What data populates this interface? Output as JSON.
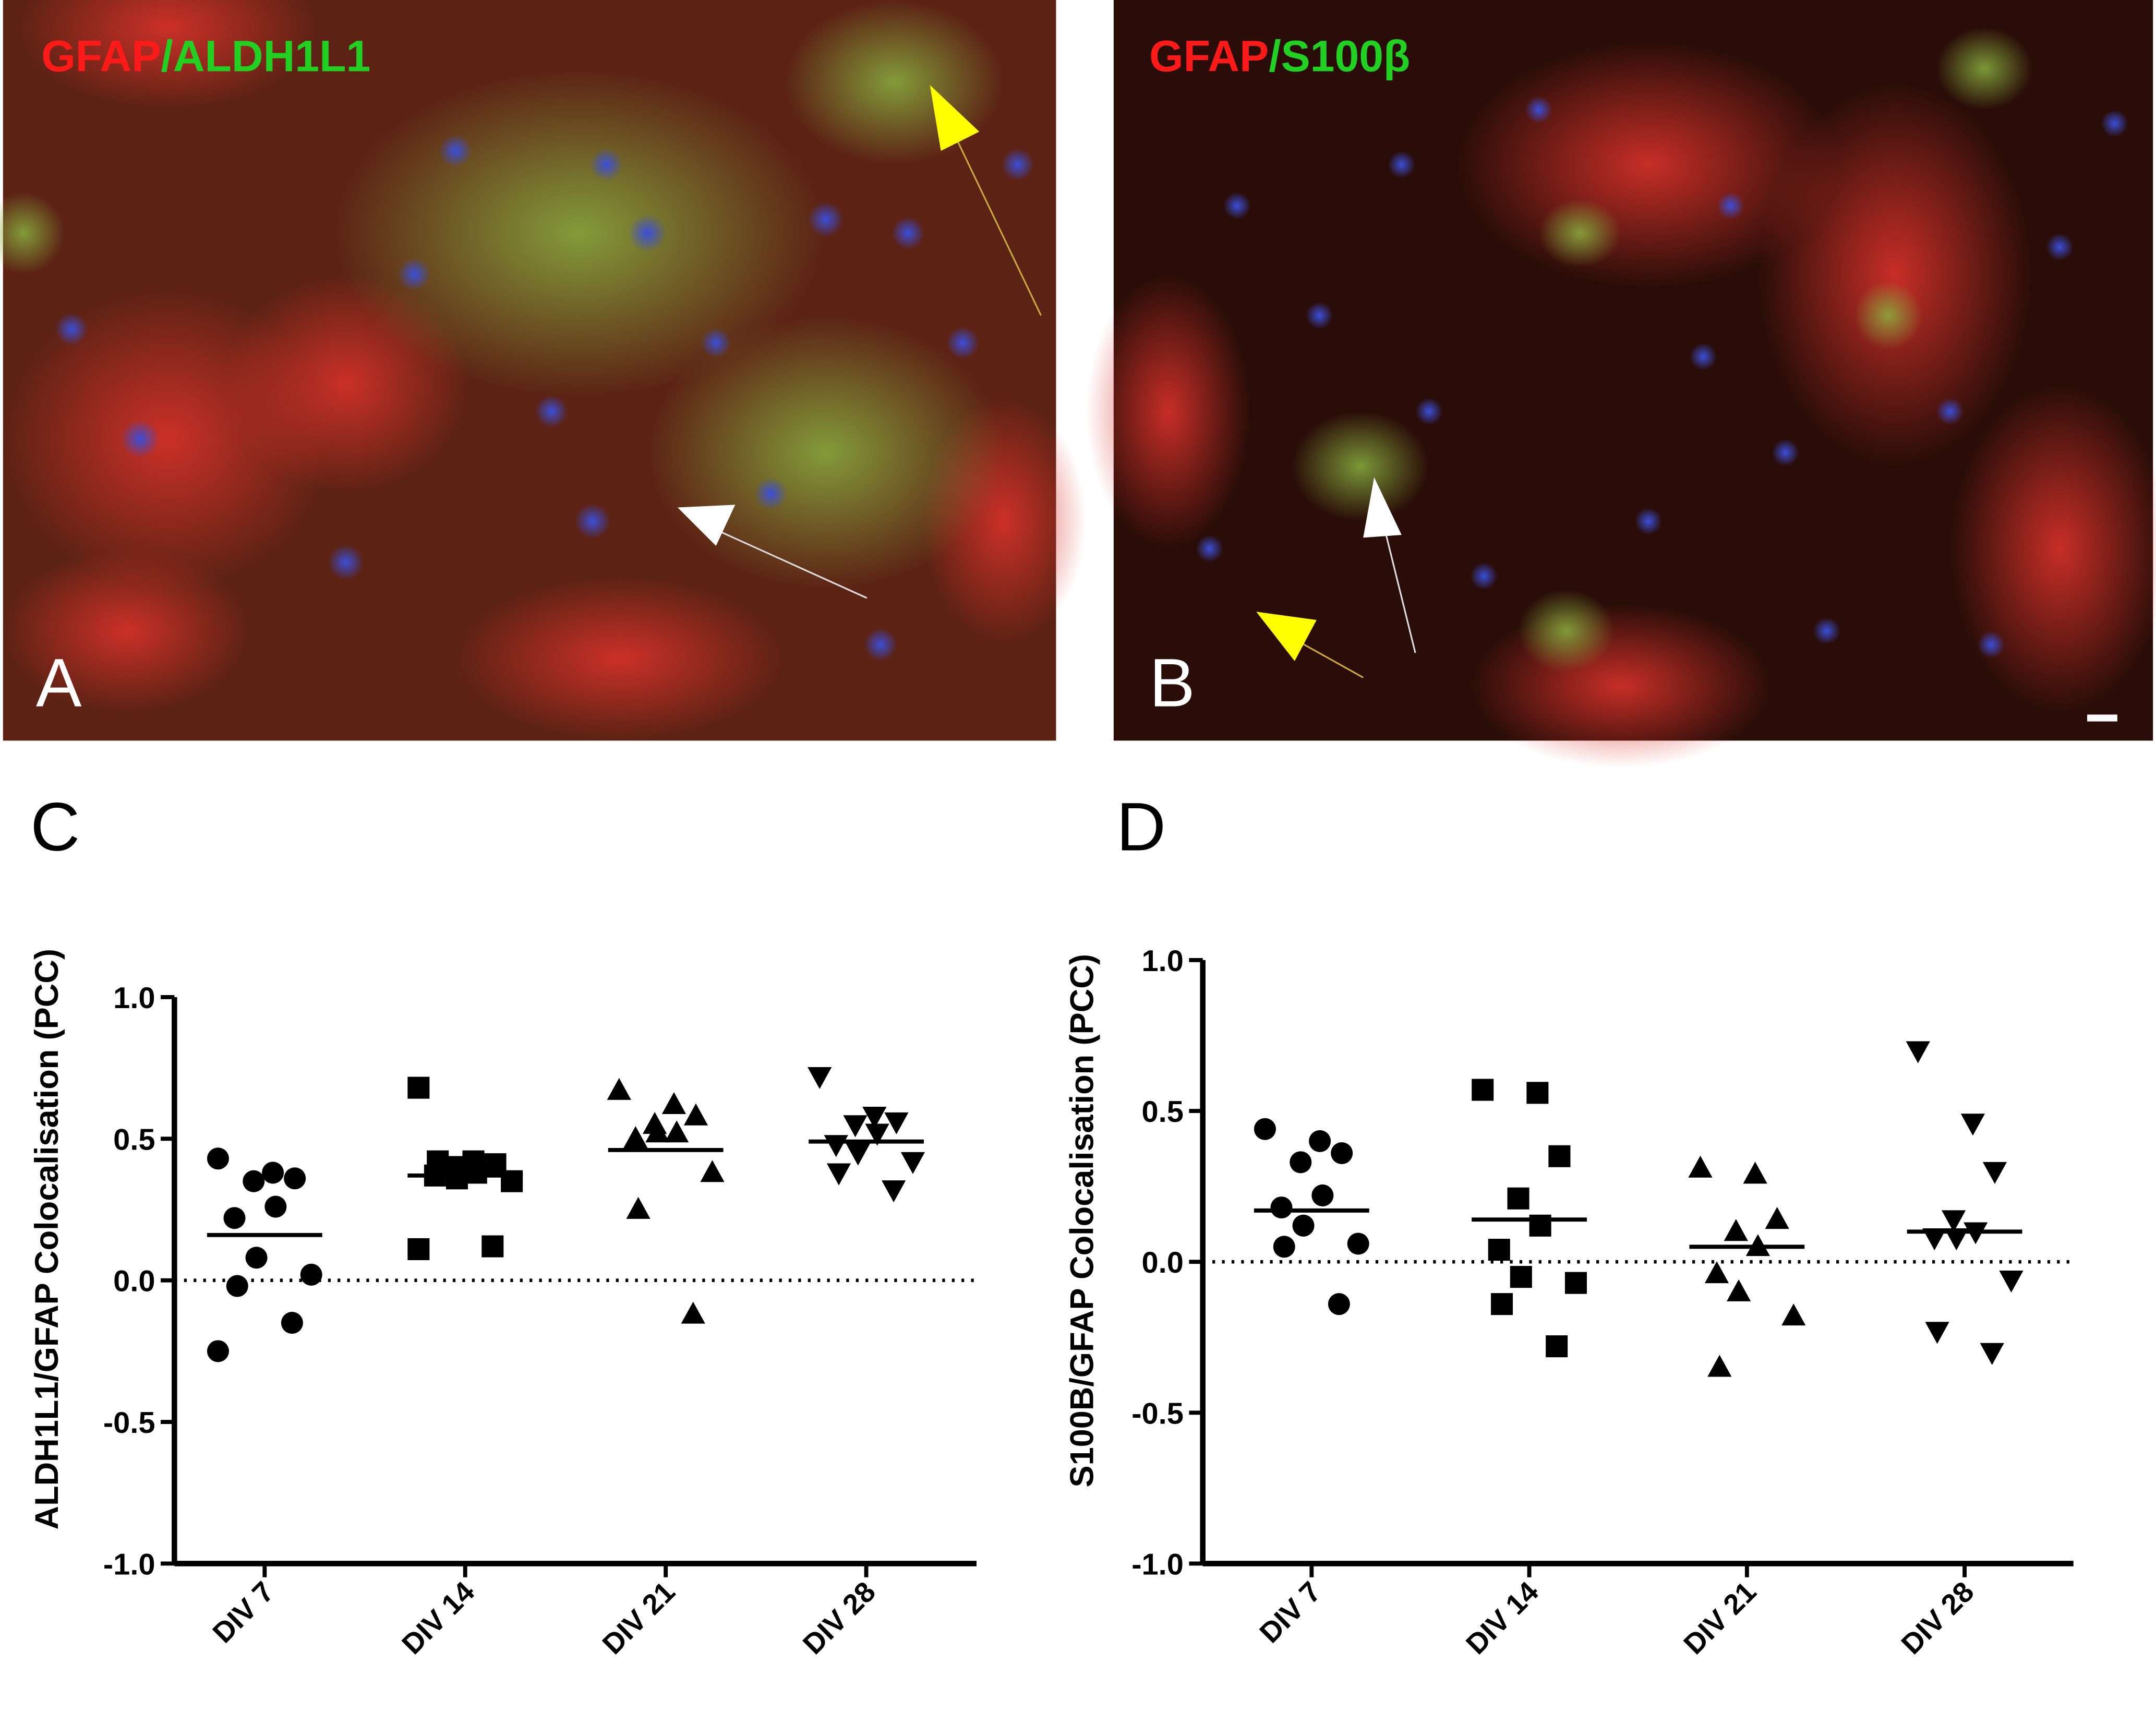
{
  "panels": [
    {
      "label": "A",
      "stain": [
        "GFAP",
        "/ALDH1L1"
      ]
    },
    {
      "label": "B",
      "stain": [
        "GFAP",
        "/S100β"
      ]
    }
  ],
  "chart_data": [
    {
      "type": "dot",
      "panel": "C",
      "ylabel": "ALDH1L1/GFAP Colocalisation (PCC)",
      "categories": [
        "DIV 7",
        "DIV 14",
        "DIV 21",
        "DIV 28"
      ],
      "markers": [
        "circle",
        "square",
        "triangle-up",
        "triangle-down"
      ],
      "values": [
        [
          0.43,
          0.38,
          0.36,
          0.35,
          0.26,
          0.22,
          0.08,
          0.02,
          -0.02,
          -0.15,
          -0.25
        ],
        [
          0.68,
          0.42,
          0.41,
          0.4,
          0.38,
          0.37,
          0.36,
          0.35,
          0.42,
          0.12,
          0.11
        ],
        [
          0.67,
          0.62,
          0.58,
          0.55,
          0.52,
          0.5,
          0.52,
          0.38,
          0.25,
          -0.12
        ],
        [
          0.72,
          0.58,
          0.56,
          0.55,
          0.52,
          0.48,
          0.45,
          0.42,
          0.38,
          0.32
        ]
      ],
      "means": [
        0.16,
        0.37,
        0.46,
        0.49
      ],
      "hline": 0,
      "ylim": [
        -1,
        1
      ],
      "yticks": [
        {
          "value": 1,
          "label": "1.0"
        },
        0.5,
        {
          "value": 0,
          "label": "0.0"
        },
        -0.5,
        {
          "value": -1,
          "label": "-1.0"
        }
      ],
      "color": "#000000"
    },
    {
      "type": "dot",
      "panel": "D",
      "ylabel": "S100B/GFAP Colocalisation (PCC)",
      "categories": [
        "DIV 7",
        "DIV 14",
        "DIV 21",
        "DIV 28"
      ],
      "markers": [
        "circle",
        "square",
        "triangle-up",
        "triangle-down"
      ],
      "values": [
        [
          0.44,
          0.4,
          0.36,
          0.33,
          0.22,
          0.18,
          0.12,
          0.06,
          0.05,
          -0.14
        ],
        [
          0.57,
          0.56,
          0.35,
          0.21,
          0.12,
          0.04,
          -0.05,
          -0.07,
          -0.14,
          -0.28
        ],
        [
          0.31,
          0.29,
          0.14,
          0.1,
          0.05,
          -0.04,
          -0.1,
          -0.18,
          -0.35
        ],
        [
          0.7,
          0.46,
          0.3,
          0.14,
          0.1,
          0.08,
          0.08,
          -0.06,
          -0.23,
          -0.3
        ]
      ],
      "means": [
        0.17,
        0.14,
        0.05,
        0.1
      ],
      "hline": 0,
      "ylim": [
        -1,
        1
      ],
      "yticks": [
        {
          "value": 1,
          "label": "1.0"
        },
        0.5,
        {
          "value": 0,
          "label": "0.0"
        },
        -0.5,
        {
          "value": -1,
          "label": "-1.0"
        }
      ],
      "color": "#000000"
    }
  ]
}
